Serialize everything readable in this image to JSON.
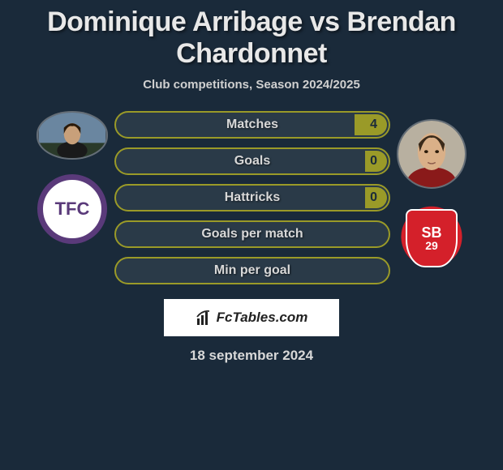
{
  "title": "Dominique Arribage vs Brendan Chardonnet",
  "subtitle": "Club competitions, Season 2024/2025",
  "date": "18 september 2024",
  "brand": {
    "text": "FcTables.com"
  },
  "colors": {
    "bg": "#1a2a3a",
    "stat_border": "#9a9a28",
    "stat_fill": "#9a9a28",
    "stat_text": "#d8d8d8",
    "title_color": "#e8e8e8"
  },
  "left": {
    "player_name": "Dominique Arribage",
    "club_code": "TFC",
    "club_colors": {
      "ring": "#5a3a7a",
      "bg": "#ffffff"
    }
  },
  "right": {
    "player_name": "Brendan Chardonnet",
    "club_code_top": "SB",
    "club_code_bottom": "29",
    "club_colors": {
      "shield": "#d4202a",
      "outline": "#ffffff"
    }
  },
  "stats": [
    {
      "label": "Matches",
      "right_value": "4",
      "right_fill_pct": 12
    },
    {
      "label": "Goals",
      "right_value": "0",
      "right_fill_pct": 8
    },
    {
      "label": "Hattricks",
      "right_value": "0",
      "right_fill_pct": 8
    },
    {
      "label": "Goals per match",
      "right_value": "",
      "right_fill_pct": 0
    },
    {
      "label": "Min per goal",
      "right_value": "",
      "right_fill_pct": 0
    }
  ]
}
